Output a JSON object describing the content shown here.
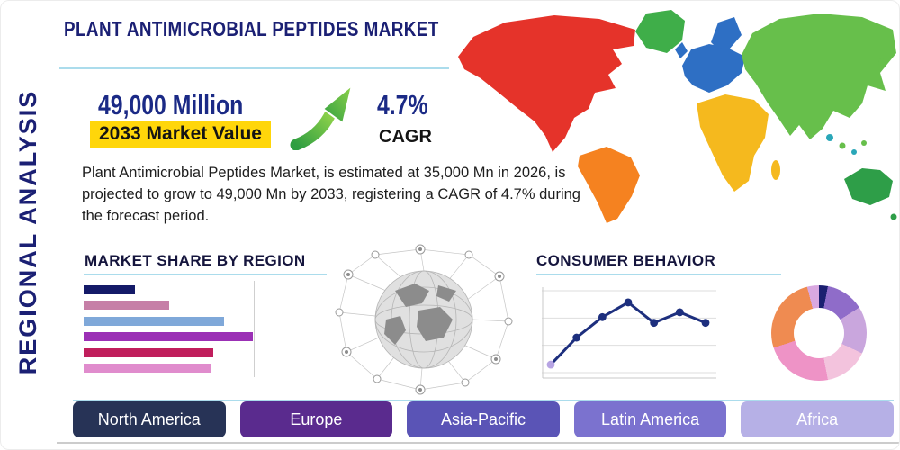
{
  "page": {
    "title": "PLANT ANTIMICROBIAL PEPTIDES MARKET",
    "side_label": "REGIONAL ANALYSIS"
  },
  "colors": {
    "brand_navy": "#1b2074",
    "highlight_yellow": "#ffd60a",
    "arrow_green": "#5cb93f",
    "underline_blue": "#abdcec"
  },
  "highlight": {
    "market_value": "49,000 Million",
    "market_value_caption": "2033 Market Value",
    "cagr_value": "4.7%",
    "cagr_label": "CAGR",
    "description": "Plant Antimicrobial Peptides Market, is estimated at 35,000 Mn in 2026, is projected to grow to 49,000 Mn by 2033, registering a CAGR of 4.7% during the forecast period."
  },
  "sections": {
    "market_share_title": "MARKET SHARE BY REGION",
    "consumer_behavior_title": "CONSUMER BEHAVIOR"
  },
  "regions": [
    {
      "label": "North America",
      "color": "#273356"
    },
    {
      "label": "Europe",
      "color": "#5a2b8e"
    },
    {
      "label": "Asia-Pacific",
      "color": "#5a54b6"
    },
    {
      "label": "Latin America",
      "color": "#7b72cf"
    },
    {
      "label": "Africa",
      "color": "#b6b0e6"
    }
  ],
  "chart_data": [
    {
      "type": "bar",
      "title": "MARKET SHARE BY REGION",
      "orientation": "horizontal",
      "values": [
        30,
        50,
        82,
        99,
        76,
        74
      ],
      "x_max": 100,
      "colors": [
        "#141a68",
        "#c67fa7",
        "#7fa8d9",
        "#9b30b5",
        "#c01e5c",
        "#e08ccd"
      ]
    },
    {
      "type": "line",
      "title": "CONSUMER BEHAVIOR",
      "x": [
        1,
        2,
        3,
        4,
        5,
        6,
        7
      ],
      "values": [
        1.2,
        4.5,
        7.0,
        8.8,
        6.3,
        7.6,
        6.3
      ],
      "ylim": [
        0,
        10
      ],
      "color": "#1d2f7e",
      "first_point_color": "#b7a4e3",
      "grid": true
    },
    {
      "type": "pie",
      "donut": true,
      "slices": [
        {
          "color": "#1a1f71",
          "value": 3
        },
        {
          "color": "#8f6cc9",
          "value": 13
        },
        {
          "color": "#c9a6dd",
          "value": 16
        },
        {
          "color": "#f3c3dd",
          "value": 15
        },
        {
          "color": "#ee93c6",
          "value": 23
        },
        {
          "color": "#ef8b51",
          "value": 26
        },
        {
          "color": "#d9a8e0",
          "value": 4
        }
      ]
    }
  ],
  "map": {
    "colors": {
      "north_america": "#e5332a",
      "greenland": "#3fae49",
      "south_america": "#f58220",
      "europe": "#2e6fc4",
      "africa": "#f5b91e",
      "asia": "#67bf4b",
      "australia": "#2e9e48",
      "islands": "#2aa7b8"
    }
  }
}
